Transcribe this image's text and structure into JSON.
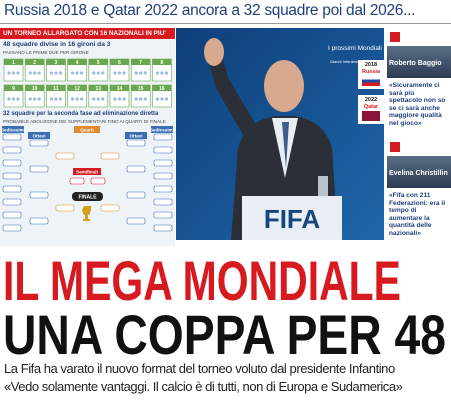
{
  "kicker": "Russia 2018 e Qatar 2022 ancora a 32 squadre poi dal 2026...",
  "infographic": {
    "header": "UN TORNEO ALLARGATO CON 16 NAZIONALI IN PIU'",
    "groups_title": "48 squadre divise in 16 gironi da 3",
    "groups_note": "PASSANO LE PRIME DUE PER GIRONE",
    "groups": [
      "1",
      "2",
      "3",
      "4",
      "5",
      "6",
      "7",
      "8",
      "9",
      "10",
      "11",
      "12",
      "13",
      "14",
      "15",
      "16"
    ],
    "knockout_title": "32 squadre per la seconda fase ad eliminazione diretta",
    "knockout_note": "PROBABILE ABOLIZIONE DEI SUPPLEMENTARI FINO AI QUARTI DI FINALE",
    "rounds": {
      "round32_left": "Sedicesimi",
      "round16_left": "Ottavi",
      "quarters": "Quarti",
      "semis": "Semifinali",
      "final": "FINALE",
      "round16_right": "Ottavi",
      "round32_right": "Sedicesimi"
    }
  },
  "photo": {
    "caption": "Gianni Infantino 46 anni",
    "podium": "FIFA",
    "box_title": "I prossimi Mondiali",
    "next": [
      {
        "year": "2018",
        "host": "Russia"
      },
      {
        "year": "2022",
        "host": "Qatar"
      }
    ]
  },
  "quotes": [
    {
      "name": "Roberto Baggio",
      "text": "«Sicuramente ci sarà più spettacolo non so se ci sarà anche maggiore qualità nel gioco»"
    },
    {
      "name": "Evelina Christillin",
      "text": "«Fifa con 211 Federazioni: era il tempo di aumentare la quantità delle nazionali»"
    }
  ],
  "headline": {
    "line1": "IL MEGA MONDIALE",
    "line2": "UNA COPPA PER 48"
  },
  "lead": [
    "La Fifa ha varato il nuovo format del torneo voluto dal presidente Infantino",
    "«Vedo solamente vantaggi. Il calcio è di tutti, non di Europa e Sudamerica»"
  ]
}
